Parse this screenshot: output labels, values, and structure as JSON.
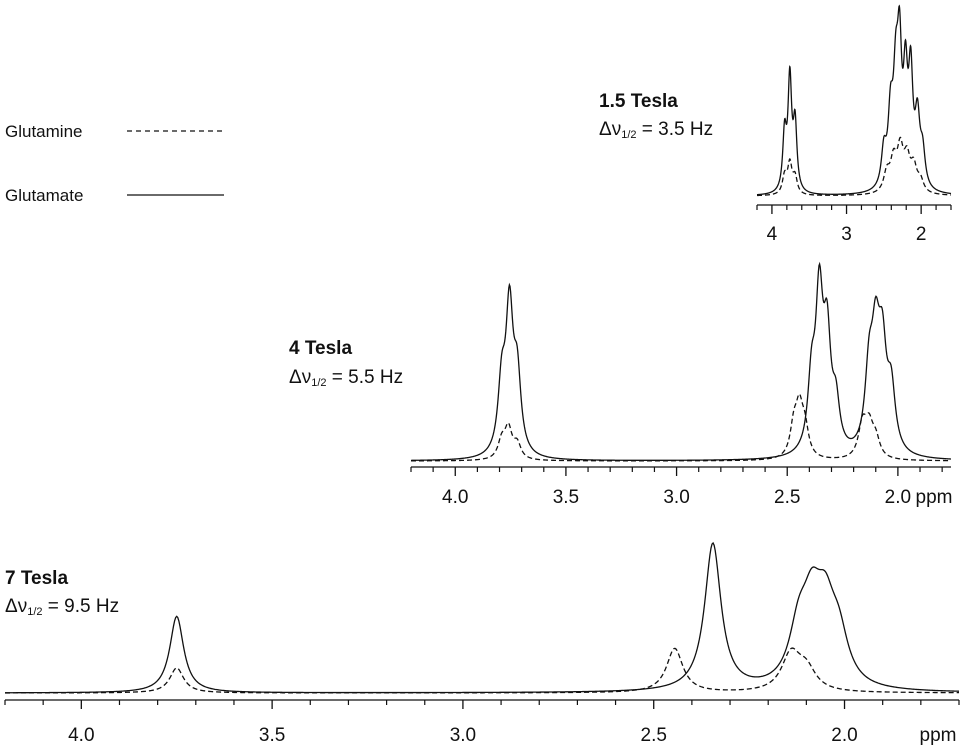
{
  "legend": {
    "glutamine": {
      "label": "Glutamine",
      "style": "dashed"
    },
    "glutamate": {
      "label": "Glutamate",
      "style": "solid"
    }
  },
  "linewidth_prefix": "Δν",
  "linewidth_sub": "1/2",
  "chart_data": [
    {
      "type": "line",
      "title": "1.5 Tesla",
      "subtitle_value": "= 3.5 Hz",
      "xlabel": "",
      "x_reversed": true,
      "xlim": [
        4.2,
        1.6
      ],
      "xticks": [
        4,
        3,
        2
      ],
      "xtick_labels": [
        "4",
        "3",
        "2"
      ],
      "minor_step": 0.2,
      "series": [
        {
          "name": "Glutamate",
          "style": "solid",
          "peaks": [
            [
              3.83,
              0.47,
              0.03
            ],
            [
              3.76,
              0.92,
              0.03
            ],
            [
              3.69,
              0.55,
              0.03
            ],
            [
              2.5,
              0.3,
              0.04
            ],
            [
              2.41,
              0.56,
              0.04
            ],
            [
              2.34,
              0.8,
              0.04
            ],
            [
              2.29,
              1.0,
              0.035
            ],
            [
              2.21,
              0.83,
              0.035
            ],
            [
              2.14,
              0.88,
              0.035
            ],
            [
              2.05,
              0.55,
              0.04
            ],
            [
              1.98,
              0.28,
              0.04
            ]
          ]
        },
        {
          "name": "Glutamine",
          "style": "dashed",
          "peaks": [
            [
              3.83,
              0.15,
              0.035
            ],
            [
              3.76,
              0.25,
              0.035
            ],
            [
              3.69,
              0.14,
              0.035
            ],
            [
              2.46,
              0.16,
              0.05
            ],
            [
              2.37,
              0.25,
              0.05
            ],
            [
              2.28,
              0.34,
              0.05
            ],
            [
              2.19,
              0.26,
              0.05
            ],
            [
              2.1,
              0.2,
              0.05
            ],
            [
              2.01,
              0.1,
              0.05
            ]
          ]
        }
      ]
    },
    {
      "type": "line",
      "title": "4 Tesla",
      "subtitle_value": "= 5.5 Hz",
      "xlabel": "ppm",
      "x_reversed": true,
      "xlim": [
        4.2,
        1.76
      ],
      "xticks": [
        4.0,
        3.5,
        3.0,
        2.5,
        2.0
      ],
      "xtick_labels": [
        "4.0",
        "3.5",
        "3.0",
        "2.5",
        "2.0"
      ],
      "minor_step": 0.1,
      "series": [
        {
          "name": "Glutamate",
          "style": "solid",
          "peaks": [
            [
              3.79,
              0.45,
              0.02
            ],
            [
              3.755,
              0.95,
              0.02
            ],
            [
              3.72,
              0.5,
              0.02
            ],
            [
              2.39,
              0.45,
              0.02
            ],
            [
              2.355,
              1.0,
              0.02
            ],
            [
              2.32,
              0.72,
              0.02
            ],
            [
              2.28,
              0.3,
              0.02
            ],
            [
              2.13,
              0.5,
              0.022
            ],
            [
              2.1,
              0.66,
              0.022
            ],
            [
              2.07,
              0.62,
              0.022
            ],
            [
              2.03,
              0.4,
              0.022
            ]
          ]
        },
        {
          "name": "Glutamine",
          "style": "dashed",
          "peaks": [
            [
              3.79,
              0.12,
              0.02
            ],
            [
              3.76,
              0.2,
              0.02
            ],
            [
              3.72,
              0.1,
              0.02
            ],
            [
              2.47,
              0.2,
              0.02
            ],
            [
              2.445,
              0.3,
              0.02
            ],
            [
              2.42,
              0.18,
              0.02
            ],
            [
              2.16,
              0.22,
              0.022
            ],
            [
              2.13,
              0.2,
              0.022
            ],
            [
              2.1,
              0.12,
              0.022
            ]
          ]
        }
      ]
    },
    {
      "type": "line",
      "title": "7 Tesla",
      "subtitle_value": "= 9.5 Hz",
      "xlabel": "ppm",
      "x_reversed": true,
      "xlim": [
        4.2,
        1.7
      ],
      "xticks": [
        4.0,
        3.5,
        3.0,
        2.5,
        2.0
      ],
      "xtick_labels": [
        "4.0",
        "3.5",
        "3.0",
        "2.5",
        "2.0"
      ],
      "minor_step": 0.1,
      "series": [
        {
          "name": "Glutamate",
          "style": "solid",
          "peaks": [
            [
              3.75,
              0.52,
              0.022
            ],
            [
              2.345,
              1.0,
              0.026
            ],
            [
              2.12,
              0.35,
              0.03
            ],
            [
              2.085,
              0.46,
              0.03
            ],
            [
              2.05,
              0.44,
              0.03
            ],
            [
              2.015,
              0.3,
              0.03
            ]
          ]
        },
        {
          "name": "Glutamine",
          "style": "dashed",
          "peaks": [
            [
              3.75,
              0.17,
              0.022
            ],
            [
              2.445,
              0.3,
              0.026
            ],
            [
              2.14,
              0.25,
              0.03
            ],
            [
              2.1,
              0.14,
              0.03
            ]
          ]
        }
      ]
    }
  ]
}
